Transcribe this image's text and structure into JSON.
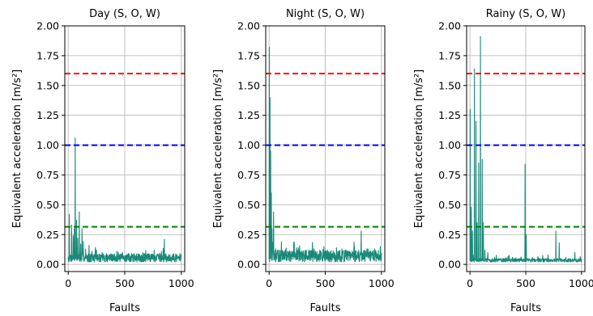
{
  "chart_data": [
    {
      "type": "line",
      "title": "Day (S, O, W)",
      "xlabel": "Faults",
      "ylabel": "Equivalent acceleration [m/s²]",
      "xlim": [
        -30,
        1030
      ],
      "ylim": [
        -0.06,
        2.0
      ],
      "xticks": [
        0,
        500,
        1000
      ],
      "yticks": [
        0.0,
        0.25,
        0.5,
        0.75,
        1.0,
        1.25,
        1.5,
        1.75,
        2.0
      ],
      "ytick_labels": [
        "0.00",
        "0.25",
        "0.50",
        "0.75",
        "1.00",
        "1.25",
        "1.50",
        "1.75",
        "2.00"
      ],
      "grid": true,
      "thresholds": [
        {
          "value": 1.6,
          "color": "#ff0000"
        },
        {
          "value": 1.0,
          "color": "#0000ff"
        },
        {
          "value": 0.315,
          "color": "#008000"
        }
      ],
      "series_color": "#1a8a78",
      "spikes": [
        [
          10,
          0.42
        ],
        [
          30,
          0.33
        ],
        [
          45,
          0.24
        ],
        [
          55,
          0.3
        ],
        [
          62,
          1.06
        ],
        [
          75,
          0.37
        ],
        [
          85,
          0.22
        ],
        [
          98,
          0.44
        ],
        [
          110,
          0.17
        ],
        [
          122,
          0.3
        ],
        [
          135,
          0.19
        ],
        [
          155,
          0.13
        ],
        [
          185,
          0.16
        ],
        [
          210,
          0.11
        ],
        [
          250,
          0.12
        ],
        [
          300,
          0.1
        ],
        [
          350,
          0.07
        ],
        [
          430,
          0.11
        ],
        [
          480,
          0.1
        ],
        [
          520,
          0.08
        ],
        [
          560,
          0.09
        ],
        [
          640,
          0.07
        ],
        [
          700,
          0.08
        ],
        [
          760,
          0.12
        ],
        [
          850,
          0.21
        ],
        [
          900,
          0.08
        ],
        [
          960,
          0.05
        ]
      ],
      "base": [
        0.02,
        0.09
      ],
      "seed": 7
    },
    {
      "type": "line",
      "title": "Night (S, O, W)",
      "xlabel": "Faults",
      "ylabel": "Equivalent acceleration [m/s²]",
      "xlim": [
        -30,
        1030
      ],
      "ylim": [
        -0.06,
        2.0
      ],
      "xticks": [
        0,
        500,
        1000
      ],
      "yticks": [
        0.0,
        0.25,
        0.5,
        0.75,
        1.0,
        1.25,
        1.5,
        1.75,
        2.0
      ],
      "ytick_labels": [
        "0.00",
        "0.25",
        "0.50",
        "0.75",
        "1.00",
        "1.25",
        "1.50",
        "1.75",
        "2.00"
      ],
      "grid": true,
      "thresholds": [
        {
          "value": 1.6,
          "color": "#ff0000"
        },
        {
          "value": 1.0,
          "color": "#0000ff"
        },
        {
          "value": 0.315,
          "color": "#008000"
        }
      ],
      "series_color": "#1a8a78",
      "spikes": [
        [
          2,
          1.82
        ],
        [
          8,
          1.4
        ],
        [
          14,
          0.95
        ],
        [
          20,
          0.6
        ],
        [
          26,
          0.3
        ],
        [
          40,
          0.44
        ],
        [
          60,
          0.13
        ],
        [
          90,
          0.12
        ],
        [
          150,
          0.13
        ],
        [
          200,
          0.11
        ],
        [
          260,
          0.14
        ],
        [
          330,
          0.12
        ],
        [
          400,
          0.13
        ],
        [
          460,
          0.11
        ],
        [
          520,
          0.12
        ],
        [
          600,
          0.14
        ],
        [
          680,
          0.12
        ],
        [
          760,
          0.15
        ],
        [
          820,
          0.28
        ],
        [
          880,
          0.13
        ],
        [
          940,
          0.13
        ],
        [
          990,
          0.15
        ]
      ],
      "base": [
        0.02,
        0.12
      ],
      "seed": 13
    },
    {
      "type": "line",
      "title": "Rainy (S, O, W)",
      "xlabel": "Faults",
      "ylabel": "Equivalent acceleration [m/s²]",
      "xlim": [
        -30,
        1030
      ],
      "ylim": [
        -0.06,
        2.0
      ],
      "xticks": [
        0,
        500,
        1000
      ],
      "yticks": [
        0.0,
        0.25,
        0.5,
        0.75,
        1.0,
        1.25,
        1.5,
        1.75,
        2.0
      ],
      "ytick_labels": [
        "0.00",
        "0.25",
        "0.50",
        "0.75",
        "1.00",
        "1.25",
        "1.50",
        "1.75",
        "2.00"
      ],
      "grid": true,
      "thresholds": [
        {
          "value": 1.6,
          "color": "#ff0000"
        },
        {
          "value": 1.0,
          "color": "#0000ff"
        },
        {
          "value": 0.315,
          "color": "#008000"
        }
      ],
      "series_color": "#1a8a78",
      "spikes": [
        [
          3,
          1.3
        ],
        [
          12,
          0.48
        ],
        [
          22,
          0.28
        ],
        [
          40,
          1.64
        ],
        [
          55,
          1.2
        ],
        [
          65,
          0.35
        ],
        [
          78,
          0.85
        ],
        [
          95,
          1.91
        ],
        [
          110,
          0.88
        ],
        [
          120,
          0.35
        ],
        [
          135,
          0.12
        ],
        [
          160,
          0.1
        ],
        [
          220,
          0.06
        ],
        [
          300,
          0.05
        ],
        [
          380,
          0.06
        ],
        [
          450,
          0.05
        ],
        [
          495,
          0.84
        ],
        [
          505,
          0.25
        ],
        [
          560,
          0.06
        ],
        [
          620,
          0.05
        ],
        [
          700,
          0.07
        ],
        [
          770,
          0.28
        ],
        [
          800,
          0.18
        ],
        [
          860,
          0.06
        ],
        [
          940,
          0.1
        ],
        [
          990,
          0.04
        ]
      ],
      "base": [
        0.02,
        0.05
      ],
      "seed": 29
    }
  ]
}
